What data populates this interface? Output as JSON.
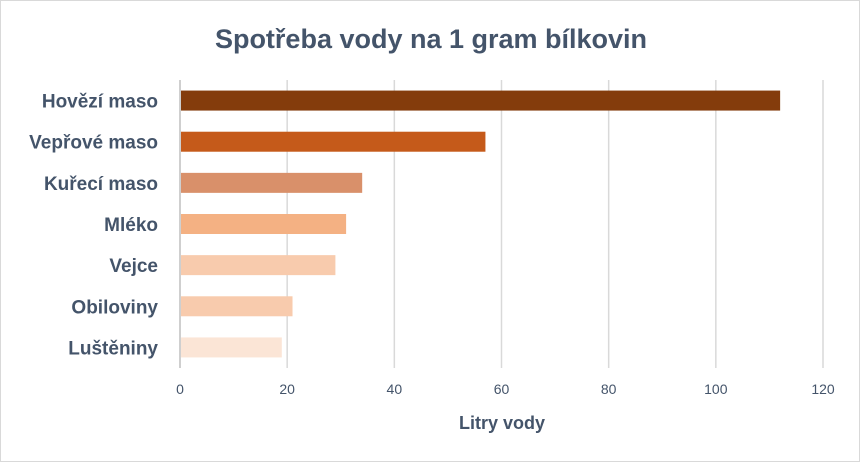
{
  "chart_data": {
    "type": "bar",
    "orientation": "horizontal",
    "title": "Spotřeba vody na 1 gram bílkovin",
    "xlabel": "Litry vody",
    "ylabel": "",
    "categories": [
      "Hovězí maso",
      "Vepřové maso",
      "Kuřecí maso",
      "Mléko",
      "Vejce",
      "Obiloviny",
      "Luštěniny"
    ],
    "values": [
      112,
      57,
      34,
      31,
      29,
      21,
      19
    ],
    "colors": [
      "#843c0c",
      "#c55a1a",
      "#d9906a",
      "#f4b183",
      "#f8cbad",
      "#f8cbad",
      "#fbe5d6"
    ],
    "xlim": [
      0,
      120
    ],
    "xticks": [
      "0",
      "20",
      "40",
      "60",
      "80",
      "100",
      "120"
    ],
    "grid": true,
    "legend": "none"
  }
}
